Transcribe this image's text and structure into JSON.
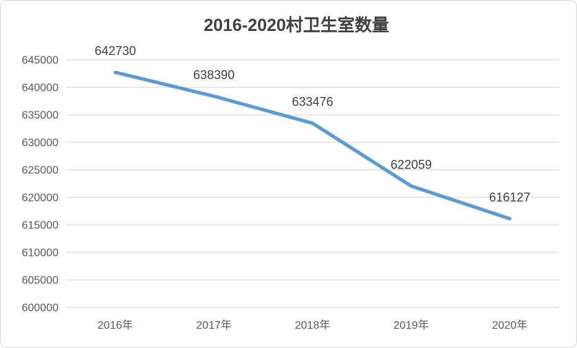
{
  "chart_data": {
    "type": "line",
    "title": "2016-2020村卫生室数量",
    "categories": [
      "2016年",
      "2017年",
      "2018年",
      "2019年",
      "2020年"
    ],
    "values": [
      642730,
      638390,
      633476,
      622059,
      616127
    ],
    "data_labels": [
      "642730",
      "638390",
      "633476",
      "622059",
      "616127"
    ],
    "data_labels_shown": true,
    "data_labels_position": "above",
    "ytick_labels": [
      "645000",
      "640000",
      "635000",
      "630000",
      "625000",
      "620000",
      "615000",
      "610000",
      "605000",
      "600000"
    ],
    "ylim": [
      600000,
      645000
    ],
    "ytick_step": 5000,
    "xlabel": "",
    "ylabel": "",
    "grid": "horizontal",
    "legend": "none",
    "markers": "none"
  },
  "colors": {
    "line": "#5B9BD5",
    "gridline": "#D9D9D9",
    "axis_text": "#595959",
    "data_label_text": "#404040",
    "title_text": "#404040",
    "frame_border": "#D6D6D6",
    "background": "#FFFFFF"
  }
}
